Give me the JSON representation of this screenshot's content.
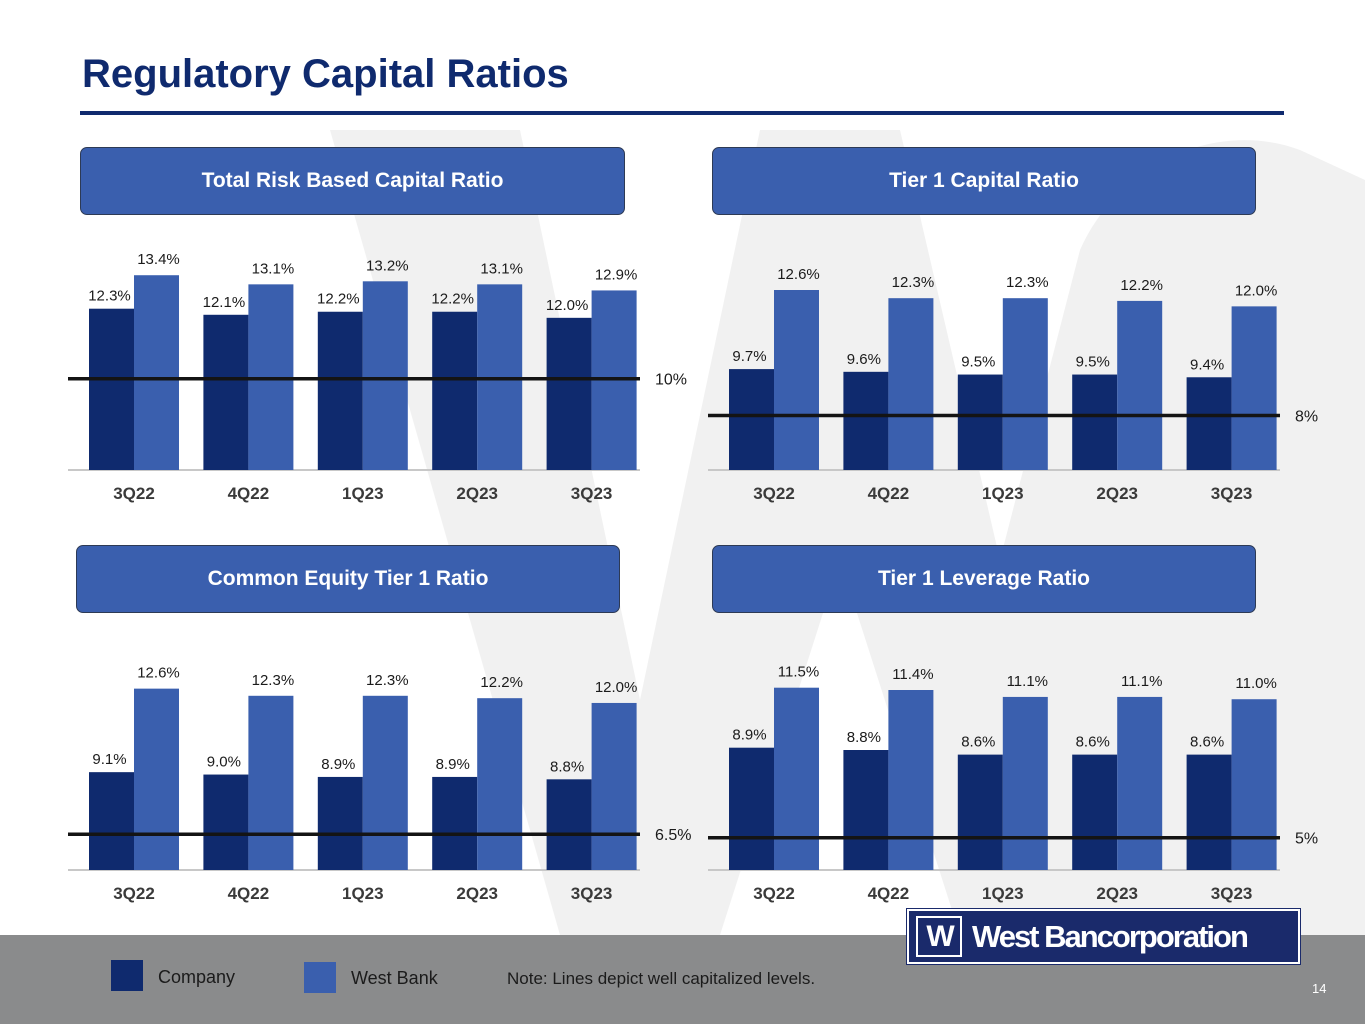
{
  "page": {
    "title": "Regulatory Capital Ratios",
    "page_number": "14"
  },
  "legend": {
    "company": "Company",
    "bank": "West Bank",
    "note": "Note: Lines depict well capitalized levels."
  },
  "logo": {
    "mark": "W",
    "text": "West Bancorporation"
  },
  "colors": {
    "title": "#0f2a6e",
    "company": "#0f2a6e",
    "bank": "#3a5fae",
    "header": "#3a5fae",
    "footer": "#8a8b8c"
  },
  "chart_data": [
    {
      "type": "bar",
      "title": "Total Risk Based Capital Ratio",
      "categories": [
        "3Q22",
        "4Q22",
        "1Q23",
        "2Q23",
        "3Q23"
      ],
      "series": [
        {
          "name": "Company",
          "values": [
            12.3,
            12.1,
            12.2,
            12.2,
            12.0
          ]
        },
        {
          "name": "West Bank",
          "values": [
            13.4,
            13.1,
            13.2,
            13.1,
            12.9
          ]
        }
      ],
      "threshold": {
        "value": 10.0,
        "label": "10%"
      },
      "ylim": [
        7.0,
        13.9
      ]
    },
    {
      "type": "bar",
      "title": "Tier 1 Capital Ratio",
      "categories": [
        "3Q22",
        "4Q22",
        "1Q23",
        "2Q23",
        "3Q23"
      ],
      "series": [
        {
          "name": "Company",
          "values": [
            9.7,
            9.6,
            9.5,
            9.5,
            9.4
          ]
        },
        {
          "name": "West Bank",
          "values": [
            12.6,
            12.3,
            12.3,
            12.2,
            12.0
          ]
        }
      ],
      "threshold": {
        "value": 8.0,
        "label": "8%"
      },
      "ylim": [
        6.0,
        13.7
      ]
    },
    {
      "type": "bar",
      "title": "Common Equity Tier 1 Ratio",
      "categories": [
        "3Q22",
        "4Q22",
        "1Q23",
        "2Q23",
        "3Q23"
      ],
      "series": [
        {
          "name": "Company",
          "values": [
            9.1,
            9.0,
            8.9,
            8.9,
            8.8
          ]
        },
        {
          "name": "West Bank",
          "values": [
            12.6,
            12.3,
            12.3,
            12.2,
            12.0
          ]
        }
      ],
      "threshold": {
        "value": 6.5,
        "label": "6.5%"
      },
      "ylim": [
        5.0,
        13.8
      ]
    },
    {
      "type": "bar",
      "title": "Tier 1 Leverage Ratio",
      "categories": [
        "3Q22",
        "4Q22",
        "1Q23",
        "2Q23",
        "3Q23"
      ],
      "series": [
        {
          "name": "Company",
          "values": [
            8.9,
            8.8,
            8.6,
            8.6,
            8.6
          ]
        },
        {
          "name": "West Bank",
          "values": [
            11.5,
            11.4,
            11.1,
            11.1,
            11.0
          ]
        }
      ],
      "threshold": {
        "value": 5.0,
        "label": "5%"
      },
      "ylim": [
        3.6,
        12.7
      ]
    }
  ]
}
